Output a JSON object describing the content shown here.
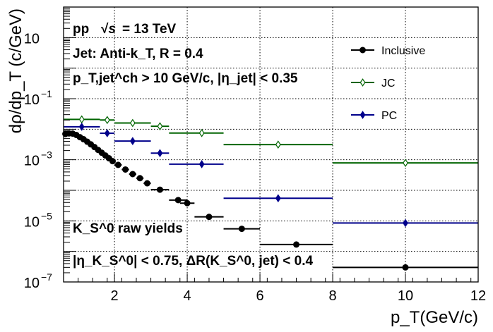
{
  "chart_data": {
    "type": "scatter",
    "title": "",
    "xlabel": "p_T(GeV/c)",
    "ylabel": "dρ/dp_T (c/GeV)",
    "xlim": [
      0.6,
      12
    ],
    "ylim_log10": [
      -7,
      2
    ],
    "yscale": "log",
    "grid": true,
    "legend_position": "top-right",
    "x_ticks": [
      {
        "value": 2,
        "label": "2"
      },
      {
        "value": 4,
        "label": "4"
      },
      {
        "value": 6,
        "label": "6"
      },
      {
        "value": 8,
        "label": "8"
      },
      {
        "value": 10,
        "label": "10"
      },
      {
        "value": 12,
        "label": "12"
      }
    ],
    "y_ticks": [
      {
        "exp": 1,
        "base": "10",
        "sup": ""
      },
      {
        "exp": -1,
        "base": "10",
        "sup": "−1"
      },
      {
        "exp": -3,
        "base": "10",
        "sup": "−3"
      },
      {
        "exp": -5,
        "base": "10",
        "sup": "−5"
      },
      {
        "exp": -7,
        "base": "10",
        "sup": "−7"
      }
    ],
    "annotations": {
      "system": "pp",
      "energy": "= 13 TeV",
      "jet_algo": "Jet: Anti-k_T, R = 0.4",
      "jet_pt_cut": "p_T,jet^ch > 10 GeV/c, |η_jet| < 0.35",
      "raw_yields": "K_S^0 raw yields",
      "eta_cut": "|η_K_S^0| < 0.75, ΔR(K_S^0, jet) < 0.4"
    },
    "series": [
      {
        "name": "Inclusive",
        "color": "#000000",
        "marker": "circle-filled",
        "points": [
          {
            "x": 0.65,
            "xlo": 0.6,
            "xhi": 0.7,
            "y": 0.007
          },
          {
            "x": 0.75,
            "xlo": 0.7,
            "xhi": 0.8,
            "y": 0.0073
          },
          {
            "x": 0.85,
            "xlo": 0.8,
            "xhi": 0.9,
            "y": 0.0072
          },
          {
            "x": 0.95,
            "xlo": 0.9,
            "xhi": 1.0,
            "y": 0.0065
          },
          {
            "x": 1.05,
            "xlo": 1.0,
            "xhi": 1.1,
            "y": 0.0055
          },
          {
            "x": 1.15,
            "xlo": 1.1,
            "xhi": 1.2,
            "y": 0.0047
          },
          {
            "x": 1.25,
            "xlo": 1.2,
            "xhi": 1.3,
            "y": 0.0039
          },
          {
            "x": 1.35,
            "xlo": 1.3,
            "xhi": 1.4,
            "y": 0.0032
          },
          {
            "x": 1.45,
            "xlo": 1.4,
            "xhi": 1.5,
            "y": 0.0026
          },
          {
            "x": 1.55,
            "xlo": 1.5,
            "xhi": 1.6,
            "y": 0.0021
          },
          {
            "x": 1.65,
            "xlo": 1.6,
            "xhi": 1.7,
            "y": 0.0017
          },
          {
            "x": 1.75,
            "xlo": 1.7,
            "xhi": 1.8,
            "y": 0.00138
          },
          {
            "x": 1.85,
            "xlo": 1.8,
            "xhi": 1.9,
            "y": 0.00112
          },
          {
            "x": 1.95,
            "xlo": 1.9,
            "xhi": 2.0,
            "y": 0.0009
          },
          {
            "x": 2.1,
            "xlo": 2.0,
            "xhi": 2.2,
            "y": 0.00068
          },
          {
            "x": 2.3,
            "xlo": 2.2,
            "xhi": 2.4,
            "y": 0.00048
          },
          {
            "x": 2.5,
            "xlo": 2.4,
            "xhi": 2.6,
            "y": 0.00034
          },
          {
            "x": 2.7,
            "xlo": 2.6,
            "xhi": 2.8,
            "y": 0.00025
          },
          {
            "x": 2.9,
            "xlo": 2.8,
            "xhi": 3.0,
            "y": 0.00017
          },
          {
            "x": 3.25,
            "xlo": 3.0,
            "xhi": 3.5,
            "y": 0.000105
          },
          {
            "x": 3.75,
            "xlo": 3.5,
            "xhi": 4.0,
            "y": 4.8e-05
          },
          {
            "x": 4.0,
            "xlo": 3.8,
            "xhi": 4.2,
            "y": 3.8e-05
          },
          {
            "x": 4.6,
            "xlo": 4.2,
            "xhi": 5.0,
            "y": 1.35e-05
          },
          {
            "x": 5.5,
            "xlo": 5.0,
            "xhi": 6.0,
            "y": 5.5e-06
          },
          {
            "x": 7.0,
            "xlo": 6.0,
            "xhi": 8.0,
            "y": 1.68e-06
          },
          {
            "x": 10.0,
            "xlo": 8.0,
            "xhi": 12.0,
            "y": 3e-07
          }
        ]
      },
      {
        "name": "JC",
        "color": "#006400",
        "marker": "diamond-open",
        "points": [
          {
            "x": 1.1,
            "xlo": 0.6,
            "xhi": 1.6,
            "y": 0.021
          },
          {
            "x": 1.8,
            "xlo": 1.6,
            "xhi": 2.0,
            "y": 0.02
          },
          {
            "x": 2.5,
            "xlo": 2.0,
            "xhi": 3.0,
            "y": 0.016
          },
          {
            "x": 3.25,
            "xlo": 3.0,
            "xhi": 3.5,
            "y": 0.0125
          },
          {
            "x": 4.4,
            "xlo": 3.5,
            "xhi": 5.0,
            "y": 0.0075
          },
          {
            "x": 6.5,
            "xlo": 5.0,
            "xhi": 8.0,
            "y": 0.00315
          },
          {
            "x": 10.0,
            "xlo": 8.0,
            "xhi": 12.0,
            "y": 0.00079
          }
        ]
      },
      {
        "name": "PC",
        "color": "#00008b",
        "marker": "diamond-filled",
        "points": [
          {
            "x": 1.1,
            "xlo": 0.6,
            "xhi": 1.6,
            "y": 0.012
          },
          {
            "x": 1.8,
            "xlo": 1.6,
            "xhi": 2.0,
            "y": 0.0074
          },
          {
            "x": 2.5,
            "xlo": 2.0,
            "xhi": 3.0,
            "y": 0.0041
          },
          {
            "x": 3.25,
            "xlo": 3.0,
            "xhi": 3.5,
            "y": 0.00165
          },
          {
            "x": 4.4,
            "xlo": 3.5,
            "xhi": 5.0,
            "y": 0.00072
          },
          {
            "x": 6.5,
            "xlo": 5.0,
            "xhi": 8.0,
            "y": 5.5e-05
          },
          {
            "x": 10.0,
            "xlo": 8.0,
            "xhi": 12.0,
            "y": 8.5e-06
          }
        ]
      }
    ]
  }
}
